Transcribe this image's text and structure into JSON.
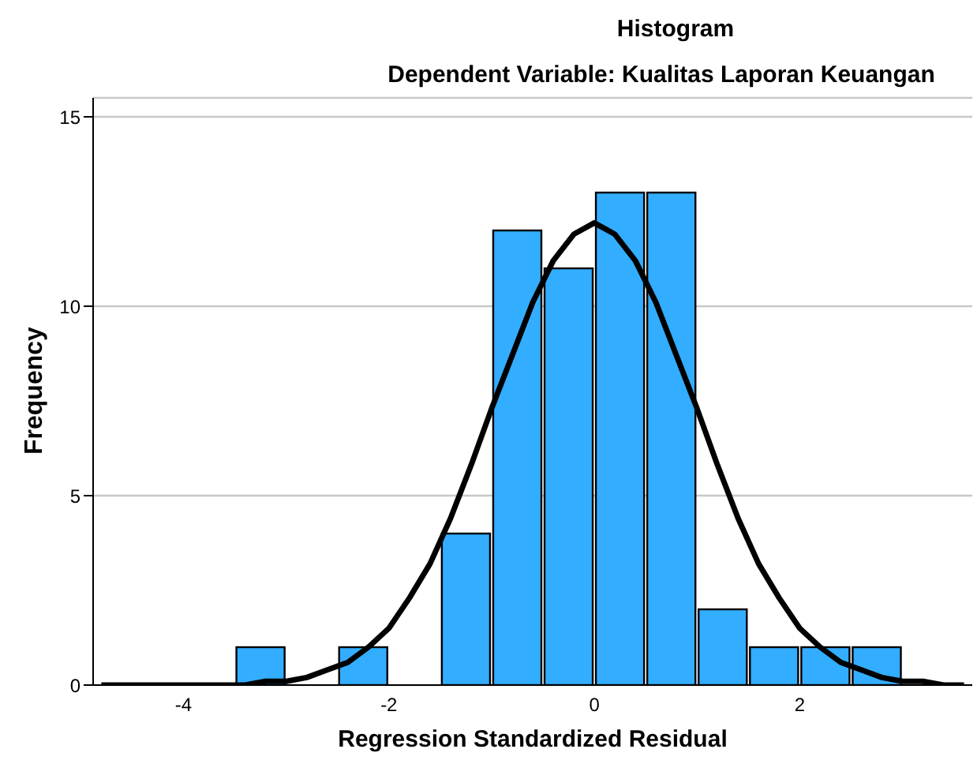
{
  "chart_data": {
    "type": "histogram",
    "title": "Histogram",
    "subtitle": "Dependent Variable: Kualitas Laporan Keuangan",
    "xlabel": "Regression Standardized Residual",
    "ylabel": "Frequency",
    "bins": [
      -3.5,
      -3,
      -2.5,
      -2,
      -1.5,
      -1,
      -0.5,
      0,
      0.5,
      1,
      1.5,
      2,
      2.5,
      3
    ],
    "xlim": [
      -4.88,
      3.68
    ],
    "xticks": [
      -4,
      -2,
      0,
      2
    ],
    "ylim": [
      0,
      15.5
    ],
    "yticks": [
      0,
      5,
      10,
      15
    ],
    "grid": "y",
    "marker": "none",
    "line_style": "solid",
    "series": [
      {
        "color": "#33adff",
        "values": [
          1,
          0,
          1,
          0,
          4,
          12,
          11,
          13,
          13,
          2,
          1,
          1,
          1
        ]
      },
      {
        "type": "line",
        "color": "#000000",
        "x": [
          -4.8,
          -4.0,
          -3.6,
          -3.4,
          -3.2,
          -3.0,
          -2.8,
          -2.6,
          -2.4,
          -2.2,
          -2.0,
          -1.8,
          -1.6,
          -1.4,
          -1.2,
          -1.0,
          -0.8,
          -0.6,
          -0.4,
          -0.2,
          0,
          0.2,
          0.4,
          0.6,
          0.8,
          1.0,
          1.2,
          1.4,
          1.6,
          1.8,
          2.0,
          2.2,
          2.4,
          2.6,
          2.8,
          3.0,
          3.2,
          3.4,
          3.6
        ],
        "values": [
          0,
          0,
          0,
          0,
          0.1,
          0.1,
          0.2,
          0.4,
          0.6,
          1.0,
          1.5,
          2.3,
          3.2,
          4.4,
          5.8,
          7.3,
          8.7,
          10.1,
          11.2,
          11.9,
          12.2,
          11.9,
          11.2,
          10.1,
          8.7,
          7.3,
          5.8,
          4.4,
          3.2,
          2.3,
          1.5,
          1.0,
          0.6,
          0.4,
          0.2,
          0.1,
          0.1,
          0,
          0
        ]
      }
    ]
  }
}
